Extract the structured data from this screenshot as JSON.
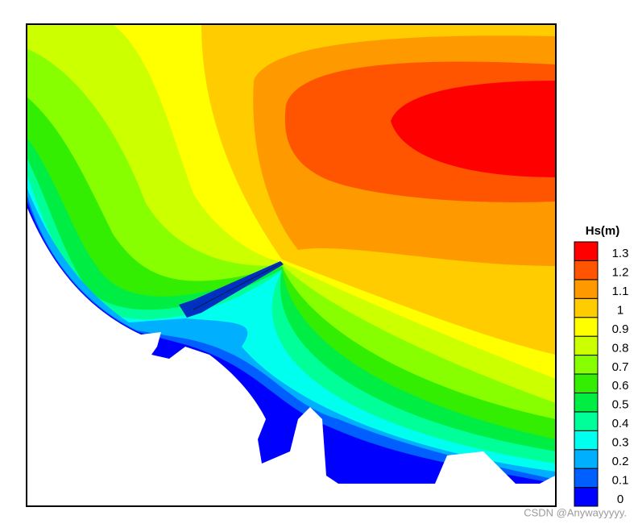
{
  "chart_data": {
    "type": "contour",
    "legend_title": "Hs(m)",
    "levels": [
      0,
      0.1,
      0.2,
      0.3,
      0.4,
      0.5,
      0.6,
      0.7,
      0.8,
      0.9,
      1,
      1.1,
      1.2,
      1.3
    ],
    "colors": [
      "#0000ff",
      "#0060ff",
      "#00b0ff",
      "#00ffee",
      "#00ff99",
      "#00ee44",
      "#33ee00",
      "#88ff00",
      "#ccff00",
      "#ffff00",
      "#ffcc00",
      "#ff9900",
      "#ff5500",
      "#ff0000"
    ]
  },
  "watermark": "CSDN @Anywayyyyy."
}
